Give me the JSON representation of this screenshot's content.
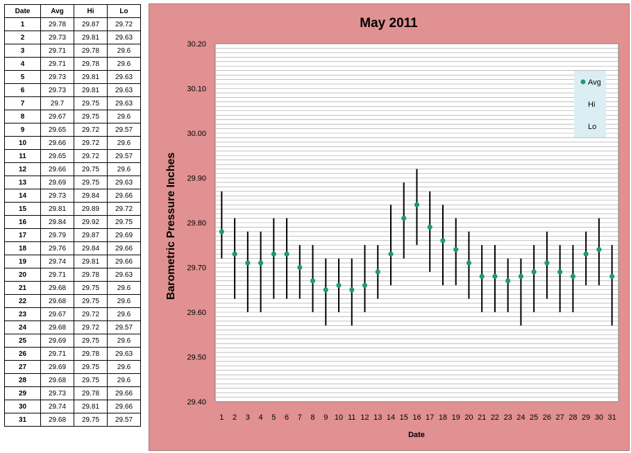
{
  "table": {
    "headers": [
      "Date",
      "Avg",
      "Hi",
      "Lo"
    ],
    "rows": [
      [
        "1",
        "29.78",
        "29.87",
        "29.72"
      ],
      [
        "2",
        "29.73",
        "29.81",
        "29.63"
      ],
      [
        "3",
        "29.71",
        "29.78",
        "29.6"
      ],
      [
        "4",
        "29.71",
        "29.78",
        "29.6"
      ],
      [
        "5",
        "29.73",
        "29.81",
        "29.63"
      ],
      [
        "6",
        "29.73",
        "29.81",
        "29.63"
      ],
      [
        "7",
        "29.7",
        "29.75",
        "29.63"
      ],
      [
        "8",
        "29.67",
        "29.75",
        "29.6"
      ],
      [
        "9",
        "29.65",
        "29.72",
        "29.57"
      ],
      [
        "10",
        "29.66",
        "29.72",
        "29.6"
      ],
      [
        "11",
        "29.65",
        "29.72",
        "29.57"
      ],
      [
        "12",
        "29.66",
        "29.75",
        "29.6"
      ],
      [
        "13",
        "29.69",
        "29.75",
        "29.63"
      ],
      [
        "14",
        "29.73",
        "29.84",
        "29.66"
      ],
      [
        "15",
        "29.81",
        "29.89",
        "29.72"
      ],
      [
        "16",
        "29.84",
        "29.92",
        "29.75"
      ],
      [
        "17",
        "29.79",
        "29.87",
        "29.69"
      ],
      [
        "18",
        "29.76",
        "29.84",
        "29.66"
      ],
      [
        "19",
        "29.74",
        "29.81",
        "29.66"
      ],
      [
        "20",
        "29.71",
        "29.78",
        "29.63"
      ],
      [
        "21",
        "29.68",
        "29.75",
        "29.6"
      ],
      [
        "22",
        "29.68",
        "29.75",
        "29.6"
      ],
      [
        "23",
        "29.67",
        "29.72",
        "29.6"
      ],
      [
        "24",
        "29.68",
        "29.72",
        "29.57"
      ],
      [
        "25",
        "29.69",
        "29.75",
        "29.6"
      ],
      [
        "26",
        "29.71",
        "29.78",
        "29.63"
      ],
      [
        "27",
        "29.69",
        "29.75",
        "29.6"
      ],
      [
        "28",
        "29.68",
        "29.75",
        "29.6"
      ],
      [
        "29",
        "29.73",
        "29.78",
        "29.66"
      ],
      [
        "30",
        "29.74",
        "29.81",
        "29.66"
      ],
      [
        "31",
        "29.68",
        "29.75",
        "29.57"
      ]
    ]
  },
  "chart_data": {
    "type": "scatter",
    "title": "May 2011",
    "xlabel": "Date",
    "ylabel": "Barometric Pressure Inches",
    "ylim": [
      29.4,
      30.2
    ],
    "y_ticks": [
      "29.40",
      "29.50",
      "29.60",
      "29.70",
      "29.80",
      "29.90",
      "30.00",
      "30.10",
      "30.20"
    ],
    "x": [
      1,
      2,
      3,
      4,
      5,
      6,
      7,
      8,
      9,
      10,
      11,
      12,
      13,
      14,
      15,
      16,
      17,
      18,
      19,
      20,
      21,
      22,
      23,
      24,
      25,
      26,
      27,
      28,
      29,
      30,
      31
    ],
    "series": [
      {
        "name": "Avg",
        "values": [
          29.78,
          29.73,
          29.71,
          29.71,
          29.73,
          29.73,
          29.7,
          29.67,
          29.65,
          29.66,
          29.65,
          29.66,
          29.69,
          29.73,
          29.81,
          29.84,
          29.79,
          29.76,
          29.74,
          29.71,
          29.68,
          29.68,
          29.67,
          29.68,
          29.69,
          29.71,
          29.69,
          29.68,
          29.73,
          29.74,
          29.68
        ]
      },
      {
        "name": "Hi",
        "values": [
          29.87,
          29.81,
          29.78,
          29.78,
          29.81,
          29.81,
          29.75,
          29.75,
          29.72,
          29.72,
          29.72,
          29.75,
          29.75,
          29.84,
          29.89,
          29.92,
          29.87,
          29.84,
          29.81,
          29.78,
          29.75,
          29.75,
          29.72,
          29.72,
          29.75,
          29.78,
          29.75,
          29.75,
          29.78,
          29.81,
          29.75
        ]
      },
      {
        "name": "Lo",
        "values": [
          29.72,
          29.63,
          29.6,
          29.6,
          29.63,
          29.63,
          29.63,
          29.6,
          29.57,
          29.6,
          29.57,
          29.6,
          29.63,
          29.66,
          29.72,
          29.75,
          29.69,
          29.66,
          29.66,
          29.63,
          29.6,
          29.6,
          29.6,
          29.57,
          29.6,
          29.63,
          29.6,
          29.6,
          29.66,
          29.66,
          29.57
        ]
      }
    ],
    "legend_position": "top-right",
    "grid": true,
    "colors": {
      "avg_marker": "#1f9a72",
      "range_line": "#000000",
      "panel_bg": "#e19191",
      "plot_bg": "#ffffff",
      "legend_bg": "#dbeef4"
    }
  }
}
